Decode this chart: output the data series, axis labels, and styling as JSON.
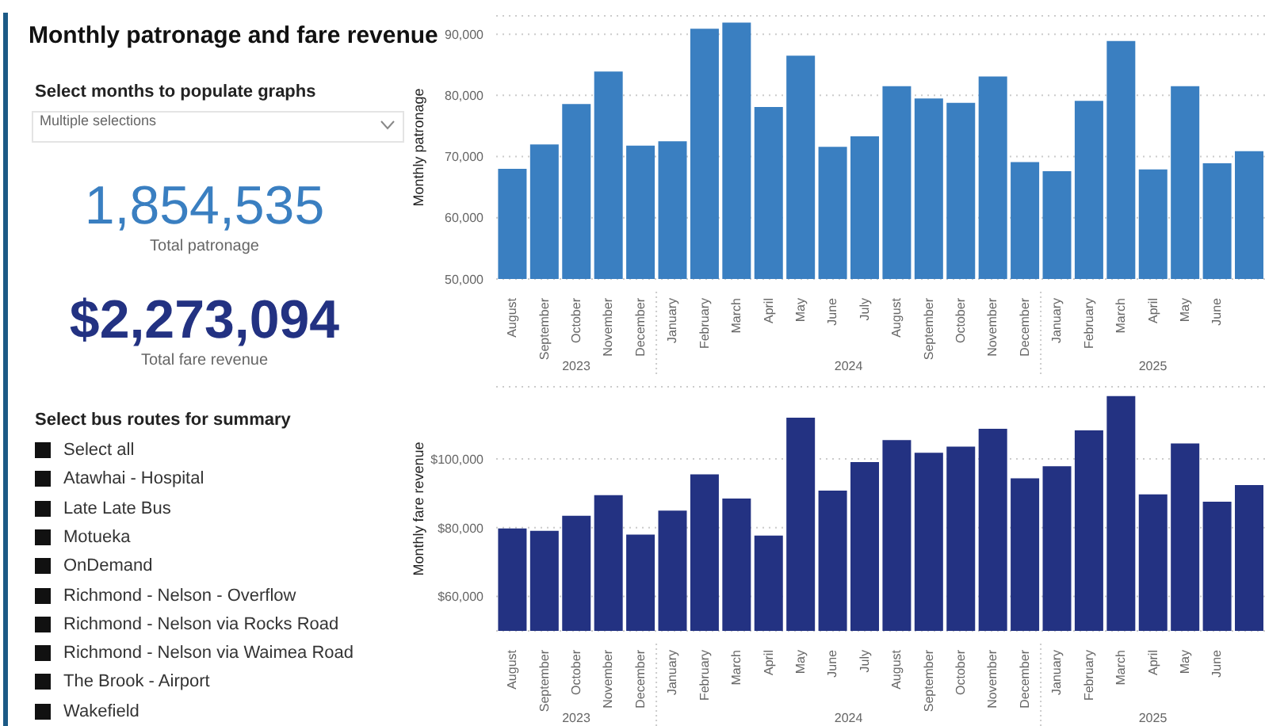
{
  "chart_data": [
    {
      "type": "other",
      "title": "Monthly patronage and fare revenue",
      "annotations": [
        "Select months to populate graphs",
        "Multiple selections",
        "1,854,535",
        "Total patronage",
        "$2,273,094",
        "Total fare revenue",
        "Select bus routes for summary",
        "Select all",
        "Atawhai - Hospital",
        "Late Late Bus",
        "Motueka",
        "OnDemand",
        "Richmond - Nelson - Overflow",
        "Richmond - Nelson via Rocks Road",
        "Richmond - Nelson via Waimea Road",
        "The Brook - Airport",
        "Wakefield"
      ]
    },
    {
      "type": "bar",
      "ylabel": "Monthly patronage",
      "categories": [
        "August",
        "September",
        "October",
        "November",
        "December",
        "January",
        "February",
        "March",
        "April",
        "May",
        "June",
        "July",
        "August",
        "September",
        "October",
        "November",
        "December",
        "January",
        "February",
        "March",
        "April",
        "May",
        "June",
        null
      ],
      "values": [
        68000,
        72000,
        78600,
        83900,
        71800,
        72500,
        90900,
        91900,
        78100,
        86500,
        71600,
        73300,
        81500,
        79500,
        78800,
        83100,
        69100,
        67600,
        79100,
        88900,
        67900,
        81500,
        68900,
        70900
      ],
      "annotations": [
        "2023",
        "2024",
        "2025"
      ],
      "color": "#3a7fc1",
      "ylim": [
        50000,
        93000
      ],
      "yticks": [
        {
          "value": 50000,
          "label": "50,000"
        },
        {
          "value": 60000,
          "label": "60,000"
        },
        {
          "value": 70000,
          "label": "70,000"
        },
        {
          "value": 80000,
          "label": "80,000"
        },
        {
          "value": 90000,
          "label": "90,000"
        }
      ],
      "grid": "y"
    },
    {
      "type": "bar",
      "ylabel": "Monthly fare revenue",
      "categories": [
        "August",
        "September",
        "October",
        "November",
        "December",
        "January",
        "February",
        "March",
        "April",
        "May",
        "June",
        "July",
        "August",
        "September",
        "October",
        "November",
        "December",
        "January",
        "February",
        "March",
        "April",
        "May",
        "June",
        null
      ],
      "values": [
        79800,
        79100,
        83500,
        89500,
        78000,
        85000,
        95500,
        88500,
        77700,
        112000,
        90800,
        99100,
        105500,
        101800,
        103600,
        108800,
        94400,
        97900,
        108300,
        118300,
        89700,
        104500,
        87600,
        92400
      ],
      "annotations": [
        "2023",
        "2024",
        "2025"
      ],
      "color": "#233282",
      "ylim": [
        50000,
        121000
      ],
      "yticks": [
        {
          "value": 60000,
          "label": "$60,000"
        },
        {
          "value": 80000,
          "label": "$80,000"
        },
        {
          "value": 100000,
          "label": "$100,000"
        }
      ],
      "grid": "y"
    }
  ]
}
